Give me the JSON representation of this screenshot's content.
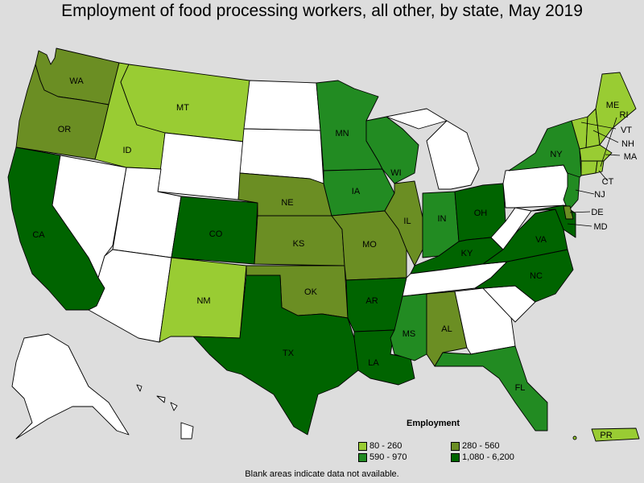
{
  "title": "Employment of food processing workers, all other, by state, May 2019",
  "legend": {
    "title": "Employment",
    "items": [
      {
        "label": "80 - 260",
        "color": "#99cc33"
      },
      {
        "label": "280 - 560",
        "color": "#6b8e23"
      },
      {
        "label": "590 - 970",
        "color": "#228b22"
      },
      {
        "label": "1,080 - 6,200",
        "color": "#006400"
      }
    ]
  },
  "footnote": "Blank areas indicate data not available.",
  "colors": {
    "background": "#dddddd",
    "no_data": "#ffffff",
    "c1": "#99cc33",
    "c2": "#6b8e23",
    "c3": "#228b22",
    "c4": "#006400"
  },
  "state_labels": {
    "WA": "WA",
    "OR": "OR",
    "CA": "CA",
    "ID": "ID",
    "MT": "MT",
    "CO": "CO",
    "NM": "NM",
    "TX": "TX",
    "NE": "NE",
    "KS": "KS",
    "OK": "OK",
    "MN": "MN",
    "IA": "IA",
    "MO": "MO",
    "AR": "AR",
    "LA": "LA",
    "WI": "WI",
    "IL": "IL",
    "MS": "MS",
    "AL": "AL",
    "IN": "IN",
    "KY": "KY",
    "OH": "OH",
    "NY": "NY",
    "VA": "VA",
    "NC": "NC",
    "FL": "FL",
    "PR": "PR",
    "ME": "ME",
    "VT": "VT",
    "NH": "NH",
    "MA": "MA",
    "CT": "CT",
    "NJ": "NJ",
    "DE": "DE",
    "MD": "MD",
    "RI": "RI"
  },
  "state_classes": {
    "WA": "c2",
    "OR": "c2",
    "CA": "c4",
    "NV": "none",
    "ID": "c1",
    "MT": "c1",
    "WY": "none",
    "UT": "none",
    "AZ": "none",
    "CO": "c4",
    "NM": "c1",
    "ND": "none",
    "SD": "none",
    "NE": "c2",
    "KS": "c2",
    "OK": "c2",
    "TX": "c4",
    "MN": "c3",
    "IA": "c3",
    "MO": "c2",
    "AR": "c4",
    "LA": "c4",
    "WI": "c3",
    "IL": "c2",
    "MI": "none",
    "IN": "c3",
    "OH": "c4",
    "KY": "c4",
    "TN": "none",
    "MS": "c3",
    "AL": "c2",
    "GA": "none",
    "FL": "c3",
    "SC": "none",
    "NC": "c4",
    "VA": "c4",
    "WV": "none",
    "PA": "none",
    "NY": "c3",
    "VT": "c1",
    "NH": "c1",
    "ME": "c1",
    "MA": "c1",
    "CT": "c1",
    "RI": "c1",
    "NJ": "c3",
    "DE": "c2",
    "MD": "c4",
    "AK": "none",
    "HI": "none",
    "PR": "c1"
  }
}
